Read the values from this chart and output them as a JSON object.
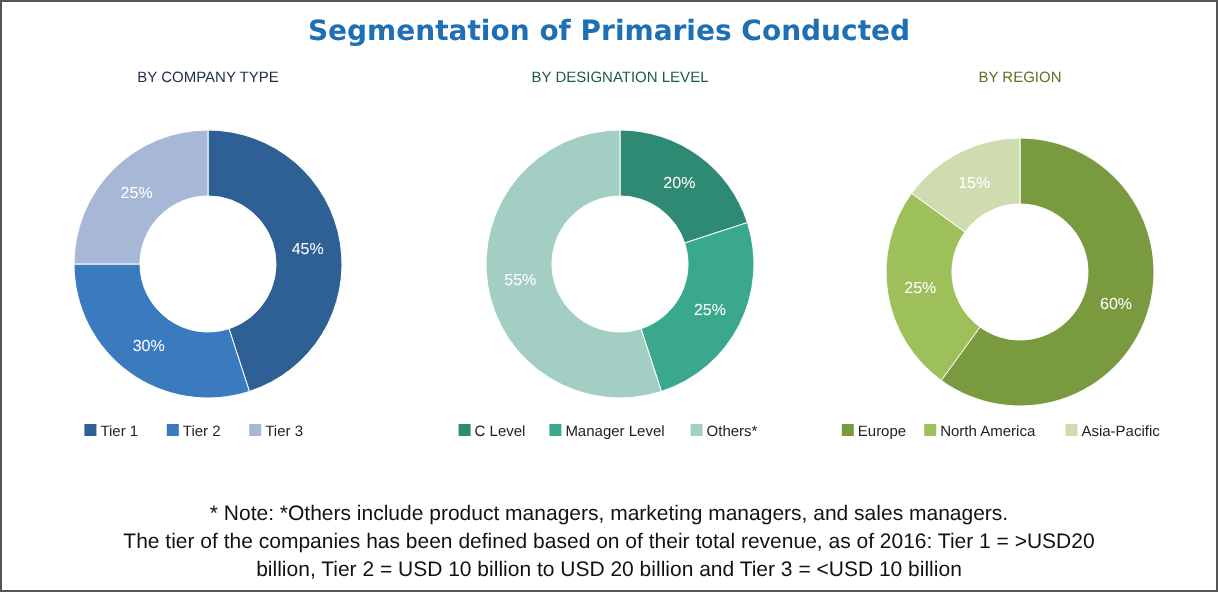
{
  "chart_data": [
    {
      "type": "donut",
      "subtitle": "BY COMPANY TYPE",
      "categories": [
        "Tier 1",
        "Tier 2",
        "Tier 3"
      ],
      "values": [
        45,
        30,
        25
      ],
      "value_labels": [
        "45%",
        "30%",
        "25%"
      ],
      "colors": [
        "#2e6096",
        "#3a7abf",
        "#a6b8d6"
      ],
      "legend": "bottom",
      "annotations": [
        "* Note: *Others include product managers, marketing managers, and sales managers.",
        "The tier of the companies has been defined based on of their total revenue, as of 2016: Tier 1 = >USD20",
        "billion, Tier 2 = USD 10 billion to USD 20 billion and Tier 3 = <USD 10 billion"
      ]
    },
    {
      "type": "donut",
      "title": "Segmentation of Primaries Conducted",
      "subtitle": "BY DESIGNATION LEVEL",
      "categories": [
        "C Level",
        "Manager Level",
        "Others*"
      ],
      "values": [
        20,
        25,
        55
      ],
      "value_labels": [
        "20%",
        "25%",
        "55%"
      ],
      "colors": [
        "#2e8a72",
        "#3aa88c",
        "#a3cec3"
      ],
      "legend": "bottom"
    },
    {
      "type": "donut",
      "subtitle": "BY REGION",
      "categories": [
        "Europe",
        "North America",
        "Asia-Pacific"
      ],
      "values": [
        60,
        25,
        15
      ],
      "value_labels": [
        "60%",
        "25%",
        "15%"
      ],
      "colors": [
        "#7a9a40",
        "#9ec05a",
        "#cfdcb0"
      ],
      "legend": "bottom"
    }
  ]
}
